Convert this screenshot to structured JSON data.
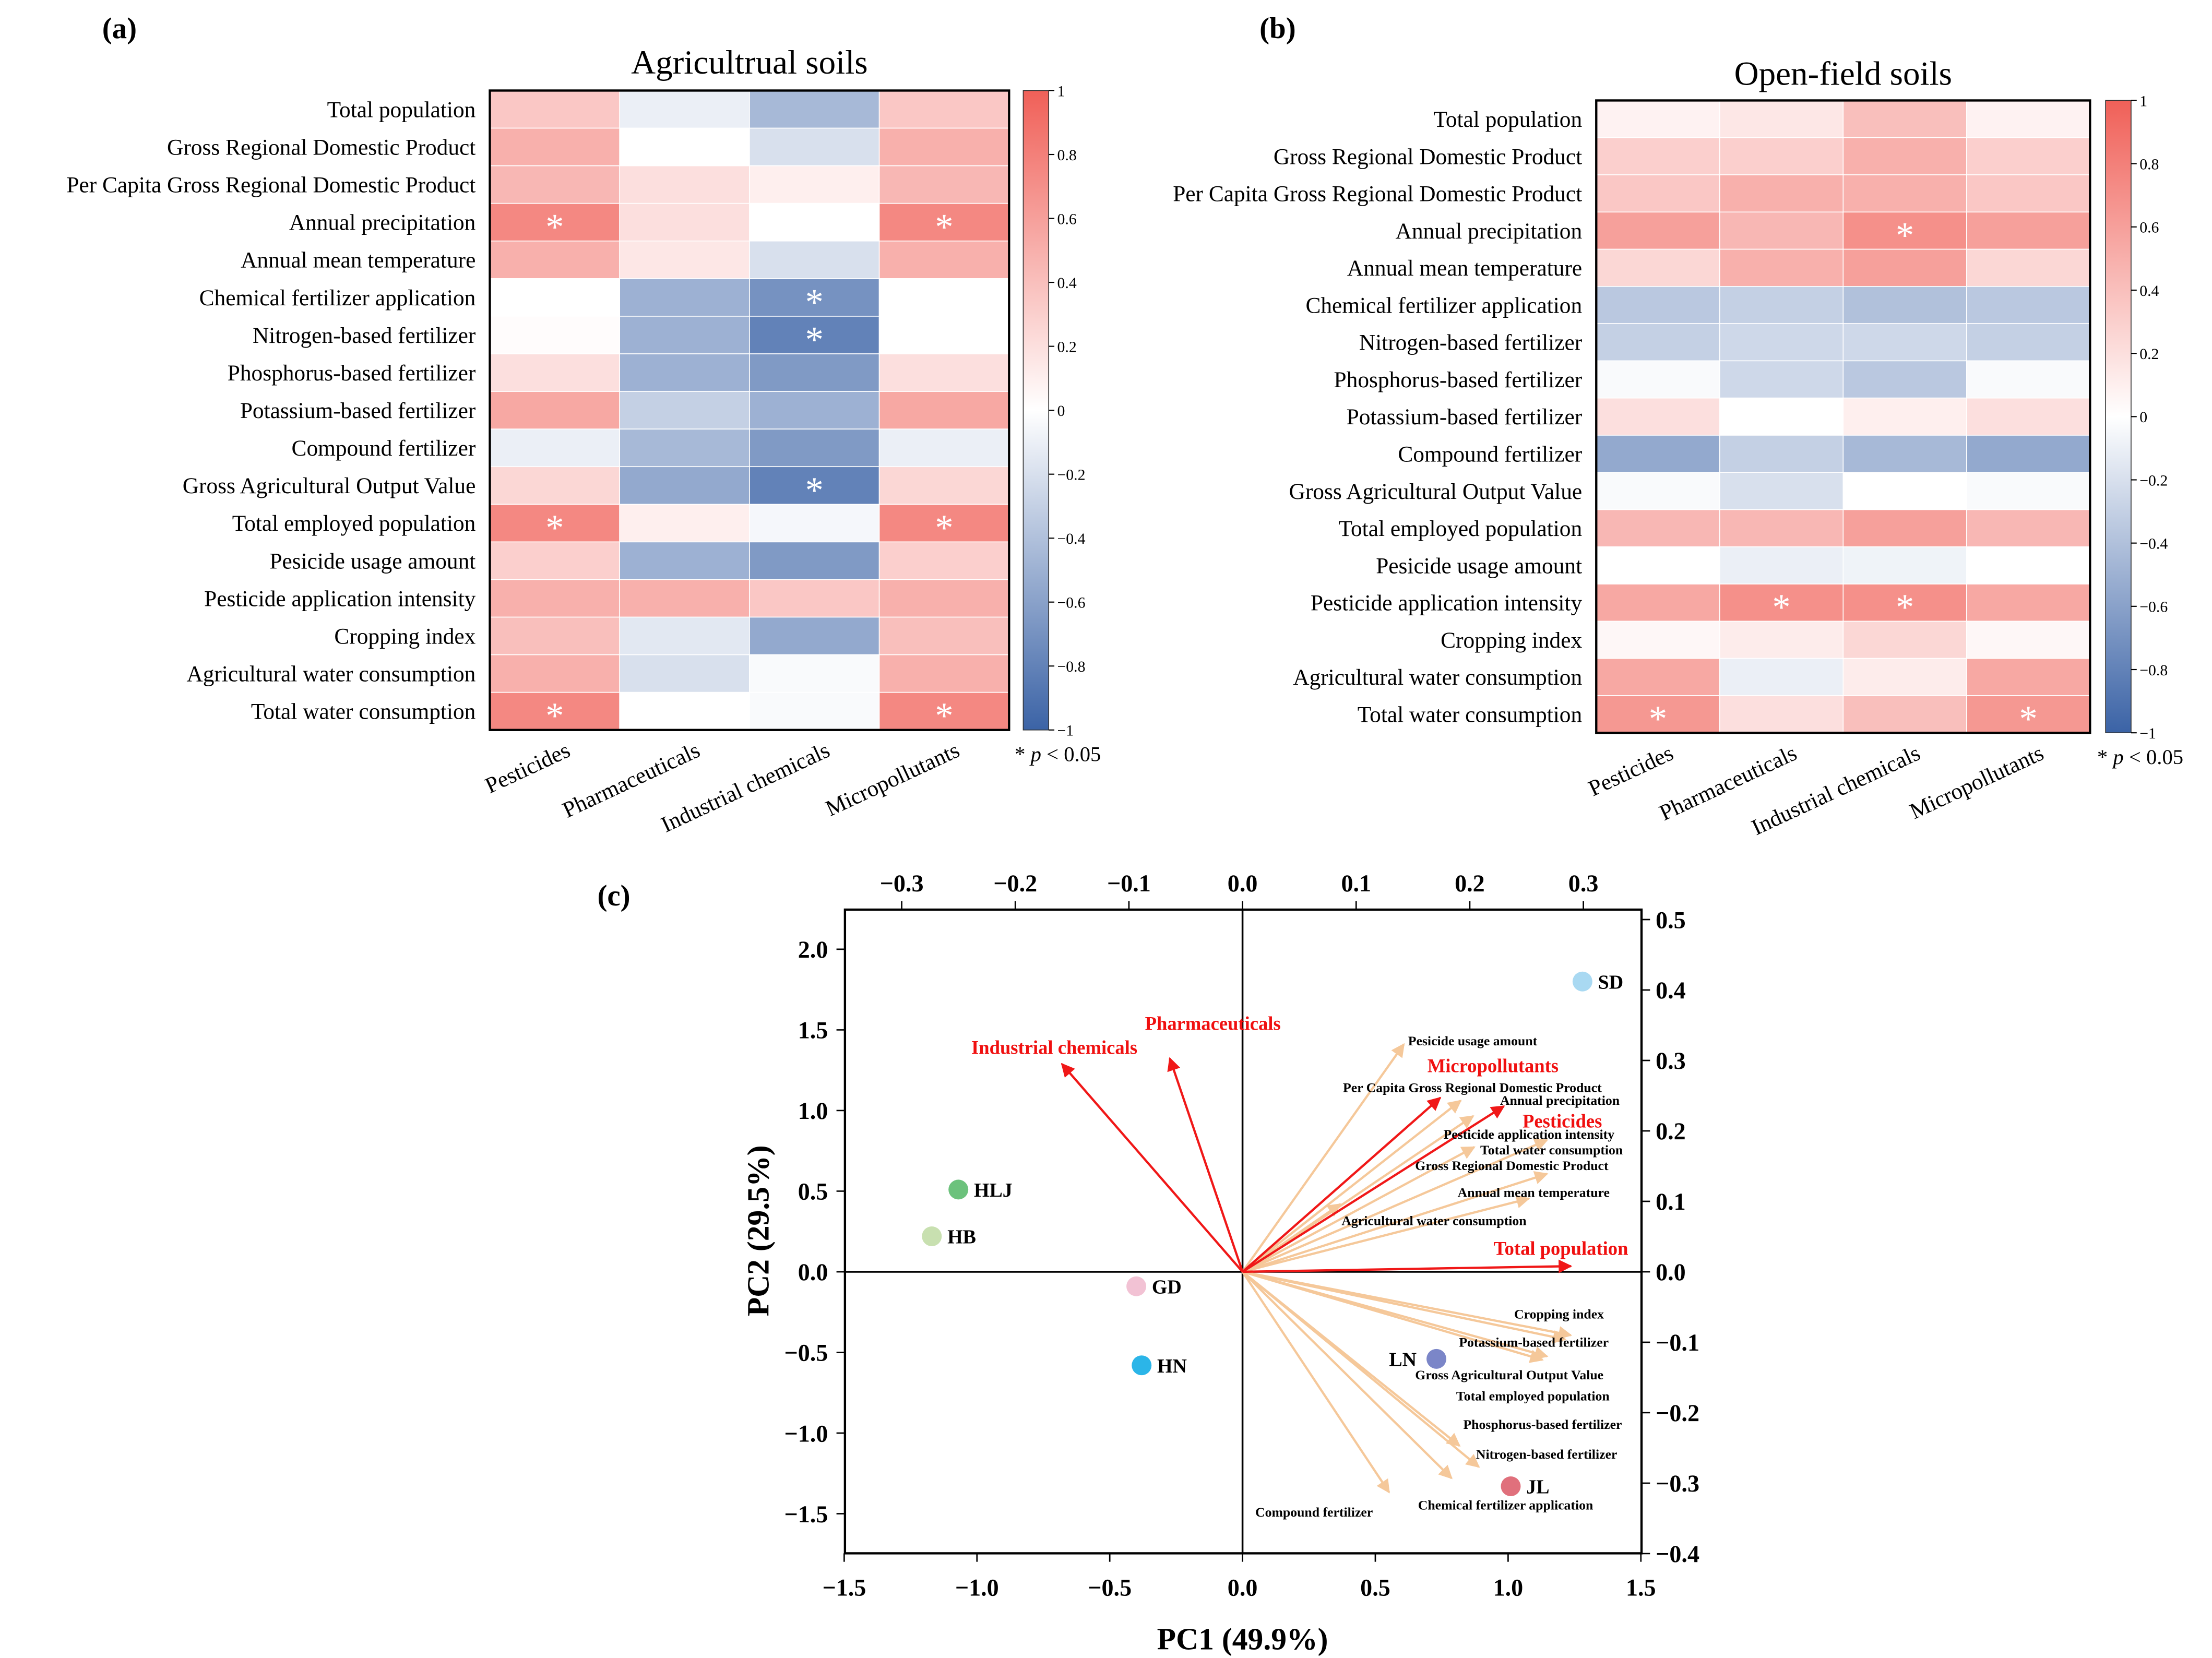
{
  "colors": {
    "neg": "#3b63a6",
    "zero": "#ffffff",
    "pos": "#f06058",
    "loading_arrow": "#f5c89a",
    "group_arrow": "#f01818"
  },
  "shared_rows": [
    "Total population",
    "Gross Regional Domestic Product",
    "Per Capita Gross Regional Domestic Product",
    "Annual precipitation",
    "Annual mean temperature",
    "Chemical fertilizer application",
    "Nitrogen-based fertilizer",
    "Phosphorus-based fertilizer",
    "Potassium-based fertilizer",
    "Compound fertilizer",
    "Gross Agricultural Output Value",
    "Total employed population",
    "Pesicide usage amount",
    "Pesticide application intensity",
    "Cropping index",
    "Agricultural water consumption",
    "Total water consumption"
  ],
  "chart_data": [
    {
      "panel": "(a)",
      "type": "heatmap",
      "title": "Agricultrual soils",
      "columns": [
        "Pesticides",
        "Pharmaceuticals",
        "Industrial chemicals",
        "Micropollutants"
      ],
      "colorbar": {
        "range": [
          -1,
          1
        ],
        "ticks": [
          "1",
          "0.8",
          "0.6",
          "0.4",
          "0.2",
          "0",
          "−0.2",
          "−0.4",
          "−0.6",
          "−0.8",
          "−1"
        ]
      },
      "significance_note": {
        "star": "*",
        "p": "p",
        "rest": " < 0.05"
      },
      "values": [
        [
          0.35,
          -0.1,
          -0.45,
          0.35
        ],
        [
          0.5,
          0.0,
          -0.2,
          0.5
        ],
        [
          0.45,
          0.2,
          0.1,
          0.45
        ],
        [
          0.75,
          0.2,
          0.0,
          0.75
        ],
        [
          0.5,
          0.15,
          -0.2,
          0.5
        ],
        [
          0.0,
          -0.5,
          -0.7,
          0.0
        ],
        [
          0.02,
          -0.5,
          -0.8,
          0.0
        ],
        [
          0.2,
          -0.5,
          -0.65,
          0.2
        ],
        [
          0.55,
          -0.3,
          -0.5,
          0.55
        ],
        [
          -0.1,
          -0.45,
          -0.65,
          -0.1
        ],
        [
          0.25,
          -0.55,
          -0.8,
          0.25
        ],
        [
          0.75,
          0.1,
          -0.05,
          0.75
        ],
        [
          0.3,
          -0.5,
          -0.65,
          0.3
        ],
        [
          0.5,
          0.5,
          0.35,
          0.5
        ],
        [
          0.4,
          -0.15,
          -0.55,
          0.4
        ],
        [
          0.5,
          -0.2,
          -0.03,
          0.5
        ],
        [
          0.75,
          0.0,
          -0.03,
          0.75
        ]
      ],
      "significant": [
        [
          3,
          0
        ],
        [
          3,
          3
        ],
        [
          5,
          2
        ],
        [
          6,
          2
        ],
        [
          10,
          2
        ],
        [
          11,
          0
        ],
        [
          11,
          3
        ],
        [
          16,
          0
        ],
        [
          16,
          3
        ]
      ]
    },
    {
      "panel": "(b)",
      "type": "heatmap",
      "title": "Open-field soils",
      "columns": [
        "Pesticides",
        "Pharmaceuticals",
        "Industrial chemicals",
        "Micropollutants"
      ],
      "colorbar": {
        "range": [
          -1,
          1
        ],
        "ticks": [
          "1",
          "0.8",
          "0.6",
          "0.4",
          "0.2",
          "0",
          "−0.2",
          "−0.4",
          "−0.6",
          "−0.8",
          "−1"
        ]
      },
      "significance_note": {
        "star": "*",
        "p": "p",
        "rest": " < 0.05"
      },
      "values": [
        [
          0.08,
          0.15,
          0.4,
          0.08
        ],
        [
          0.3,
          0.3,
          0.5,
          0.3
        ],
        [
          0.35,
          0.5,
          0.5,
          0.35
        ],
        [
          0.6,
          0.45,
          0.7,
          0.6
        ],
        [
          0.25,
          0.5,
          0.6,
          0.25
        ],
        [
          -0.35,
          -0.3,
          -0.4,
          -0.35
        ],
        [
          -0.3,
          -0.25,
          -0.25,
          -0.3
        ],
        [
          -0.03,
          -0.25,
          -0.35,
          -0.03
        ],
        [
          0.2,
          0.0,
          0.1,
          0.2
        ],
        [
          -0.55,
          -0.3,
          -0.45,
          -0.55
        ],
        [
          -0.03,
          -0.2,
          0.0,
          -0.03
        ],
        [
          0.45,
          0.45,
          0.6,
          0.45
        ],
        [
          0.0,
          -0.1,
          -0.08,
          0.0
        ],
        [
          0.55,
          0.7,
          0.7,
          0.55
        ],
        [
          0.05,
          0.12,
          0.25,
          0.05
        ],
        [
          0.55,
          -0.1,
          0.12,
          0.55
        ],
        [
          0.65,
          0.2,
          0.4,
          0.65
        ]
      ],
      "significant": [
        [
          3,
          2
        ],
        [
          13,
          1
        ],
        [
          13,
          2
        ],
        [
          16,
          0
        ],
        [
          16,
          3
        ]
      ]
    },
    {
      "panel": "(c)",
      "type": "scatter",
      "subtype": "PCA biplot",
      "xlabel": "PC1 (49.9%)",
      "ylabel": "PC2 (29.5%)",
      "xlim": [
        -1.5,
        1.5
      ],
      "ylim": [
        -1.75,
        2.25
      ],
      "x_ticks": [
        "−1.5",
        "−1.0",
        "−0.5",
        "0.0",
        "0.5",
        "1.0",
        "1.5"
      ],
      "y_ticks": [
        "−1.5",
        "−1.0",
        "−0.5",
        "0.0",
        "0.5",
        "1.0",
        "1.5",
        "2.0"
      ],
      "top_axis": {
        "lim": [
          -0.35,
          0.35
        ],
        "ticks": [
          "−0.3",
          "−0.2",
          "−0.1",
          "0.0",
          "0.1",
          "0.2",
          "0.3"
        ]
      },
      "right_axis": {
        "lim": [
          -0.4,
          0.5
        ],
        "ticks": [
          "0.5",
          "0.4",
          "0.3",
          "0.2",
          "0.1",
          "0.0",
          "−0.1",
          "−0.2",
          "−0.3",
          "−0.4"
        ]
      },
      "points": [
        {
          "label": "SD",
          "x": 1.28,
          "y": 1.8,
          "color": "#a9d9f2"
        },
        {
          "label": "HLJ",
          "x": -1.07,
          "y": 0.51,
          "color": "#6cc27c"
        },
        {
          "label": "HB",
          "x": -1.17,
          "y": 0.22,
          "color": "#c8e0b0"
        },
        {
          "label": "GD",
          "x": -0.4,
          "y": -0.09,
          "color": "#f2c2d4"
        },
        {
          "label": "HN",
          "x": -0.38,
          "y": -0.58,
          "color": "#2bb5e8"
        },
        {
          "label": "LN",
          "x": 0.73,
          "y": -0.54,
          "color": "#7b86c8"
        },
        {
          "label": "JL",
          "x": 1.01,
          "y": -1.33,
          "color": "#e0707c"
        }
      ],
      "group_loadings": [
        {
          "label": "Industrial chemicals",
          "x": -0.159,
          "y": 0.295
        },
        {
          "label": "Pharmaceuticals",
          "x": -0.064,
          "y": 0.303
        },
        {
          "label": "Micropollutants",
          "x": 0.174,
          "y": 0.247
        },
        {
          "label": "Pesticides",
          "x": 0.23,
          "y": 0.235
        },
        {
          "label": "Total population",
          "x": 0.289,
          "y": 0.008
        }
      ],
      "variable_loadings": [
        {
          "label": "Pesicide usage amount",
          "x": 0.142,
          "y": 0.323
        },
        {
          "label": "Per Capita Gross Regional Domestic Product",
          "x": 0.192,
          "y": 0.243
        },
        {
          "label": "Annual precipitation",
          "x": 0.203,
          "y": 0.221
        },
        {
          "label": "Pesticide application intensity",
          "x": 0.268,
          "y": 0.187
        },
        {
          "label": "Total water consumption",
          "x": 0.204,
          "y": 0.177
        },
        {
          "label": "Gross Regional Domestic Product",
          "x": 0.268,
          "y": 0.139
        },
        {
          "label": "Annual mean temperature",
          "x": 0.252,
          "y": 0.104
        },
        {
          "label": "Agricultural water consumption",
          "x": 0.086,
          "y": 0.096
        },
        {
          "label": "Cropping index",
          "x": 0.289,
          "y": -0.09
        },
        {
          "label": "Potassium-based fertilizer",
          "x": 0.268,
          "y": -0.12
        },
        {
          "label": "Gross Agricultural Output Value",
          "x": 0.284,
          "y": -0.096
        },
        {
          "label": "Total employed population",
          "x": 0.264,
          "y": -0.125
        },
        {
          "label": "Phosphorus-based fertilizer",
          "x": 0.191,
          "y": -0.247
        },
        {
          "label": "Nitrogen-based fertilizer",
          "x": 0.208,
          "y": -0.277
        },
        {
          "label": "Chemical fertilizer application",
          "x": 0.184,
          "y": -0.293
        },
        {
          "label": "Compound fertilizer",
          "x": 0.129,
          "y": -0.313
        }
      ]
    }
  ]
}
